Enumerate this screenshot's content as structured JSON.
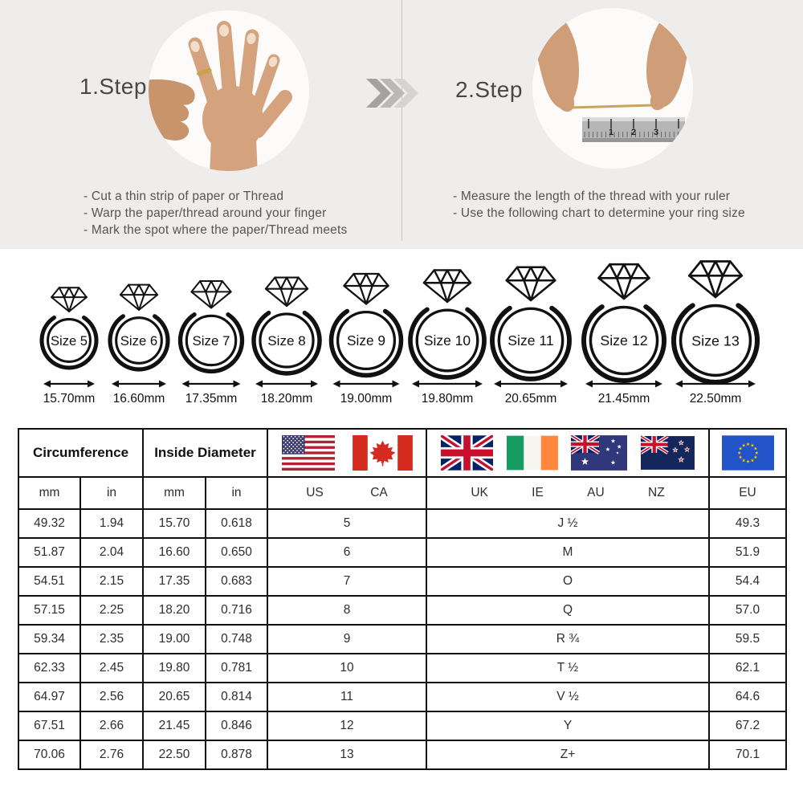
{
  "steps": [
    {
      "title": "1.Step",
      "bullets": [
        "- Cut a thin strip of paper or Thread",
        "- Warp the paper/thread around your finger",
        "- Mark the spot where the paper/Thread meets"
      ]
    },
    {
      "title": "2.Step",
      "bullets": [
        "- Measure the length of the thread with your ruler",
        "- Use the following chart to determine your ring size"
      ],
      "ruler_numbers": [
        "1",
        "2",
        "3"
      ]
    }
  ],
  "rings": [
    {
      "label": "Size 5",
      "diameter": "15.70mm"
    },
    {
      "label": "Size 6",
      "diameter": "16.60mm"
    },
    {
      "label": "Size 7",
      "diameter": "17.35mm"
    },
    {
      "label": "Size 8",
      "diameter": "18.20mm"
    },
    {
      "label": "Size 9",
      "diameter": "19.00mm"
    },
    {
      "label": "Size 10",
      "diameter": "19.80mm"
    },
    {
      "label": "Size 11",
      "diameter": "20.65mm"
    },
    {
      "label": "Size 12",
      "diameter": "21.45mm"
    },
    {
      "label": "Size 13",
      "diameter": "22.50mm"
    }
  ],
  "table": {
    "group_headers": {
      "circumference": "Circumference",
      "inside_diameter": "Inside Diameter"
    },
    "units": [
      "mm",
      "in",
      "mm",
      "in"
    ],
    "regions": {
      "us_ca": [
        "US",
        "CA"
      ],
      "uk_ie_au_nz": [
        "UK",
        "IE",
        "AU",
        "NZ"
      ],
      "eu": [
        "EU"
      ]
    },
    "flag_icons": {
      "us_ca": [
        "us-flag",
        "ca-flag"
      ],
      "uk_ie_au_nz": [
        "uk-flag",
        "ie-flag",
        "au-flag",
        "nz-flag"
      ],
      "eu": [
        "eu-flag"
      ]
    },
    "rows": [
      [
        "49.32",
        "1.94",
        "15.70",
        "0.618",
        "5",
        "J ½",
        "49.3"
      ],
      [
        "51.87",
        "2.04",
        "16.60",
        "0.650",
        "6",
        "M",
        "51.9"
      ],
      [
        "54.51",
        "2.15",
        "17.35",
        "0.683",
        "7",
        "O",
        "54.4"
      ],
      [
        "57.15",
        "2.25",
        "18.20",
        "0.716",
        "8",
        "Q",
        "57.0"
      ],
      [
        "59.34",
        "2.35",
        "19.00",
        "0.748",
        "9",
        "R ¾",
        "59.5"
      ],
      [
        "62.33",
        "2.45",
        "19.80",
        "0.781",
        "10",
        "T ½",
        "62.1"
      ],
      [
        "64.97",
        "2.56",
        "20.65",
        "0.814",
        "11",
        "V ½",
        "64.6"
      ],
      [
        "67.51",
        "2.66",
        "21.45",
        "0.846",
        "12",
        "Y",
        "67.2"
      ],
      [
        "70.06",
        "2.76",
        "22.50",
        "0.878",
        "13",
        "Z+",
        "70.1"
      ]
    ]
  },
  "colors": {
    "top_bg": "#eeedeb",
    "divider": "#c9c6c2",
    "ink": "#111111",
    "step_text": "#585450",
    "chevrons": [
      "#a5a19e",
      "#bcb8b5",
      "#d6d3d0"
    ],
    "thread": "#c9a35f",
    "flag_colors": {
      "us": {
        "canton": "#3C3B6E",
        "stripe": "#B22234"
      },
      "ca": {
        "red": "#D52B1E"
      },
      "uk": {
        "blue": "#012169",
        "red": "#C8102E"
      },
      "ie": {
        "green": "#169B62",
        "orange": "#FF883E"
      },
      "au": {
        "blue": "#30377B"
      },
      "nz": {
        "blue": "#14275B",
        "star": "#CC142B"
      },
      "eu": {
        "blue": "#2353C8",
        "star": "#FFCC00"
      }
    }
  }
}
